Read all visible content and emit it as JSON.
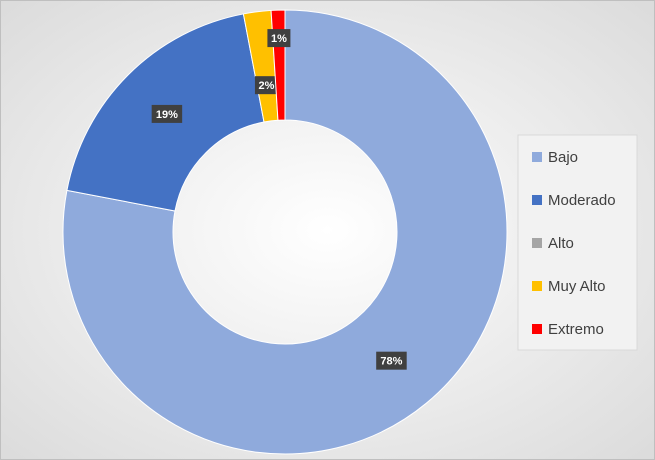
{
  "chart_data": {
    "type": "donut",
    "categories": [
      "Bajo",
      "Moderado",
      "Alto",
      "Muy Alto",
      "Extremo"
    ],
    "values": [
      78,
      19,
      0,
      2,
      1
    ],
    "value_labels": [
      "78%",
      "19%",
      null,
      "2%",
      "1%"
    ],
    "colors": [
      "#8faadc",
      "#4472c4",
      "#a5a5a5",
      "#ffc000",
      "#ff0000"
    ],
    "legend": "right"
  }
}
